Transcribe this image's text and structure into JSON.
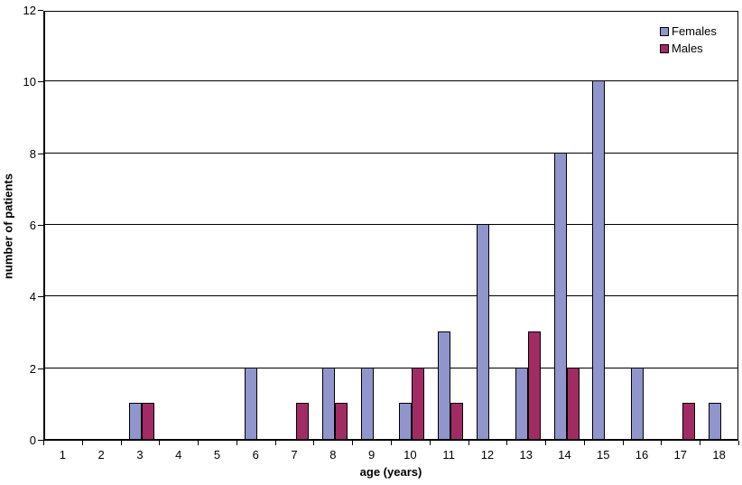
{
  "chart_data": {
    "type": "bar",
    "title": "",
    "xlabel": "age (years)",
    "ylabel": "number of patients",
    "categories": [
      "1",
      "2",
      "3",
      "4",
      "5",
      "6",
      "7",
      "8",
      "9",
      "10",
      "11",
      "12",
      "13",
      "14",
      "15",
      "16",
      "17",
      "18"
    ],
    "series": [
      {
        "name": "Females",
        "color": "#9095CC",
        "values": [
          0,
          0,
          1,
          0,
          0,
          2,
          0,
          2,
          2,
          1,
          3,
          6,
          2,
          8,
          10,
          2,
          0,
          1
        ]
      },
      {
        "name": "Males",
        "color": "#A12C63",
        "values": [
          0,
          0,
          1,
          0,
          0,
          0,
          1,
          1,
          0,
          2,
          1,
          0,
          3,
          2,
          0,
          0,
          1,
          0
        ]
      }
    ],
    "ylim": [
      0,
      12
    ],
    "yticks": [
      0,
      2,
      4,
      6,
      8,
      10,
      12
    ],
    "grid": "horizontal",
    "legend_position": "top-right-inside",
    "axis_color": "#000000",
    "background_color": "#FFFFFF"
  }
}
